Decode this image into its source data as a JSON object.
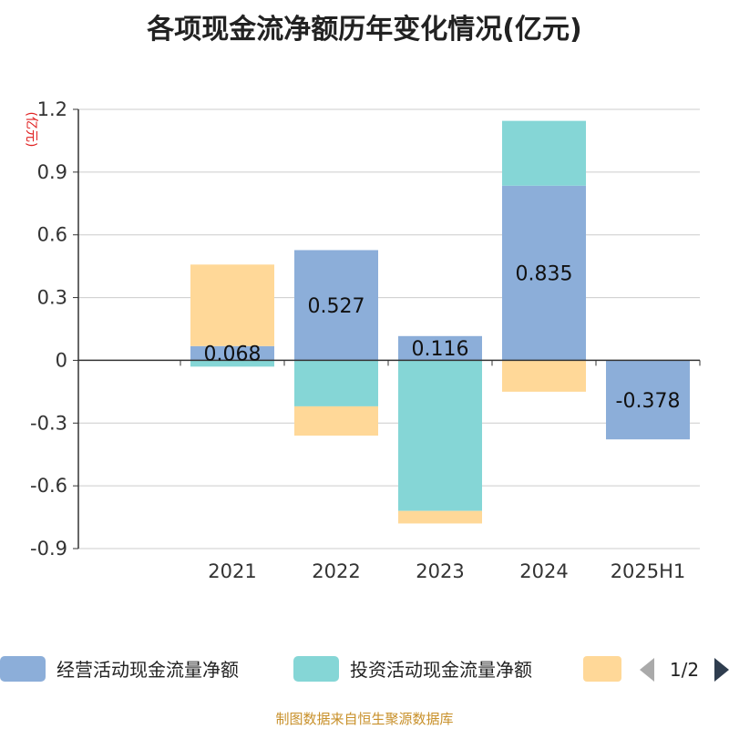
{
  "chart_data": {
    "type": "bar",
    "stacked": true,
    "title": "各项现金流净额历年变化情况(亿元)",
    "ylabel": "(亿元)",
    "ylim": [
      -0.9,
      1.2
    ],
    "yticks": [
      1.2,
      0.9,
      0.6,
      0.3,
      0,
      -0.3,
      -0.6,
      -0.9
    ],
    "ytick_labels": [
      "1.2",
      "0.9",
      "0.6",
      "0.3",
      "0",
      "-0.3",
      "-0.6",
      "-0.9"
    ],
    "categories": [
      "2021",
      "2022",
      "2023",
      "2024",
      "2025H1"
    ],
    "grid": true,
    "legend_position": "bottom",
    "series": [
      {
        "name": "经营活动现金流量净额",
        "color": "#8caed9",
        "values": [
          0.068,
          0.527,
          0.116,
          0.835,
          -0.378
        ]
      },
      {
        "name": "投资活动现金流量净额",
        "color": "#85d6d6",
        "values": [
          -0.03,
          -0.22,
          -0.72,
          0.31,
          null
        ]
      },
      {
        "name": "",
        "color": "#ffd898",
        "values": [
          0.39,
          -0.14,
          -0.06,
          -0.15,
          null
        ]
      }
    ],
    "data_labels": [
      "0.068",
      "0.527",
      "0.116",
      "0.835",
      "-0.378"
    ]
  },
  "legend": {
    "items": [
      {
        "label": "经营活动现金流量净额",
        "color": "#8caed9"
      },
      {
        "label": "投资活动现金流量净额",
        "color": "#85d6d6"
      },
      {
        "label": "",
        "color": "#ffd898"
      }
    ],
    "page": "1/2",
    "prev_icon": "triangle-left-icon",
    "next_icon": "triangle-right-icon"
  },
  "source": "制图数据来自恒生聚源数据库"
}
